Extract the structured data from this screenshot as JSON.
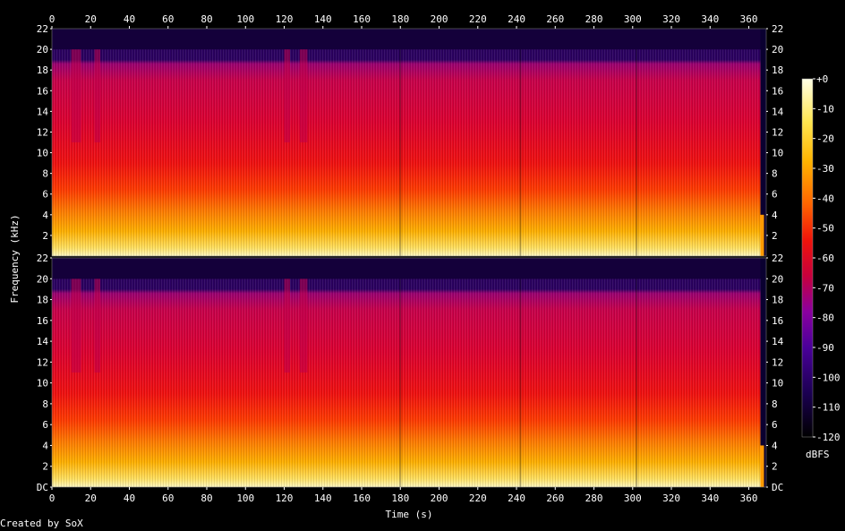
{
  "chart_data": {
    "type": "heatmap",
    "subtype": "spectrogram",
    "xlabel": "Time (s)",
    "ylabel": "Frequency (kHz)",
    "x_ticks": [
      "0",
      "20",
      "40",
      "60",
      "80",
      "100",
      "120",
      "140",
      "160",
      "180",
      "200",
      "220",
      "240",
      "260",
      "280",
      "300",
      "320",
      "340",
      "360"
    ],
    "x_range": [
      0,
      369
    ],
    "y_ticks": [
      "DC",
      "2",
      "4",
      "6",
      "8",
      "10",
      "12",
      "14",
      "16",
      "18",
      "20",
      "22"
    ],
    "y_range": [
      0,
      22
    ],
    "channels": 2,
    "colorbar": {
      "label": "dBFS",
      "ticks": [
        "+0",
        "-10",
        "-20",
        "-30",
        "-40",
        "-50",
        "-60",
        "-70",
        "-80",
        "-90",
        "-100",
        "-110",
        "-120"
      ],
      "range": [
        -120,
        0
      ],
      "colors": [
        "#000000",
        "#1a0050",
        "#4a009a",
        "#8a00a0",
        "#c8003c",
        "#f0140a",
        "#ff6400",
        "#ffb400",
        "#ffe650",
        "#ffffe6"
      ]
    },
    "content_cutoff_khz": 20,
    "end_of_audio_s": 366,
    "gap_regions_s": [
      [
        10,
        15
      ],
      [
        22,
        25
      ],
      [
        120,
        123
      ],
      [
        128,
        132
      ]
    ],
    "section_changes_s": [
      180,
      242,
      302
    ]
  },
  "credit": "Created by SoX"
}
